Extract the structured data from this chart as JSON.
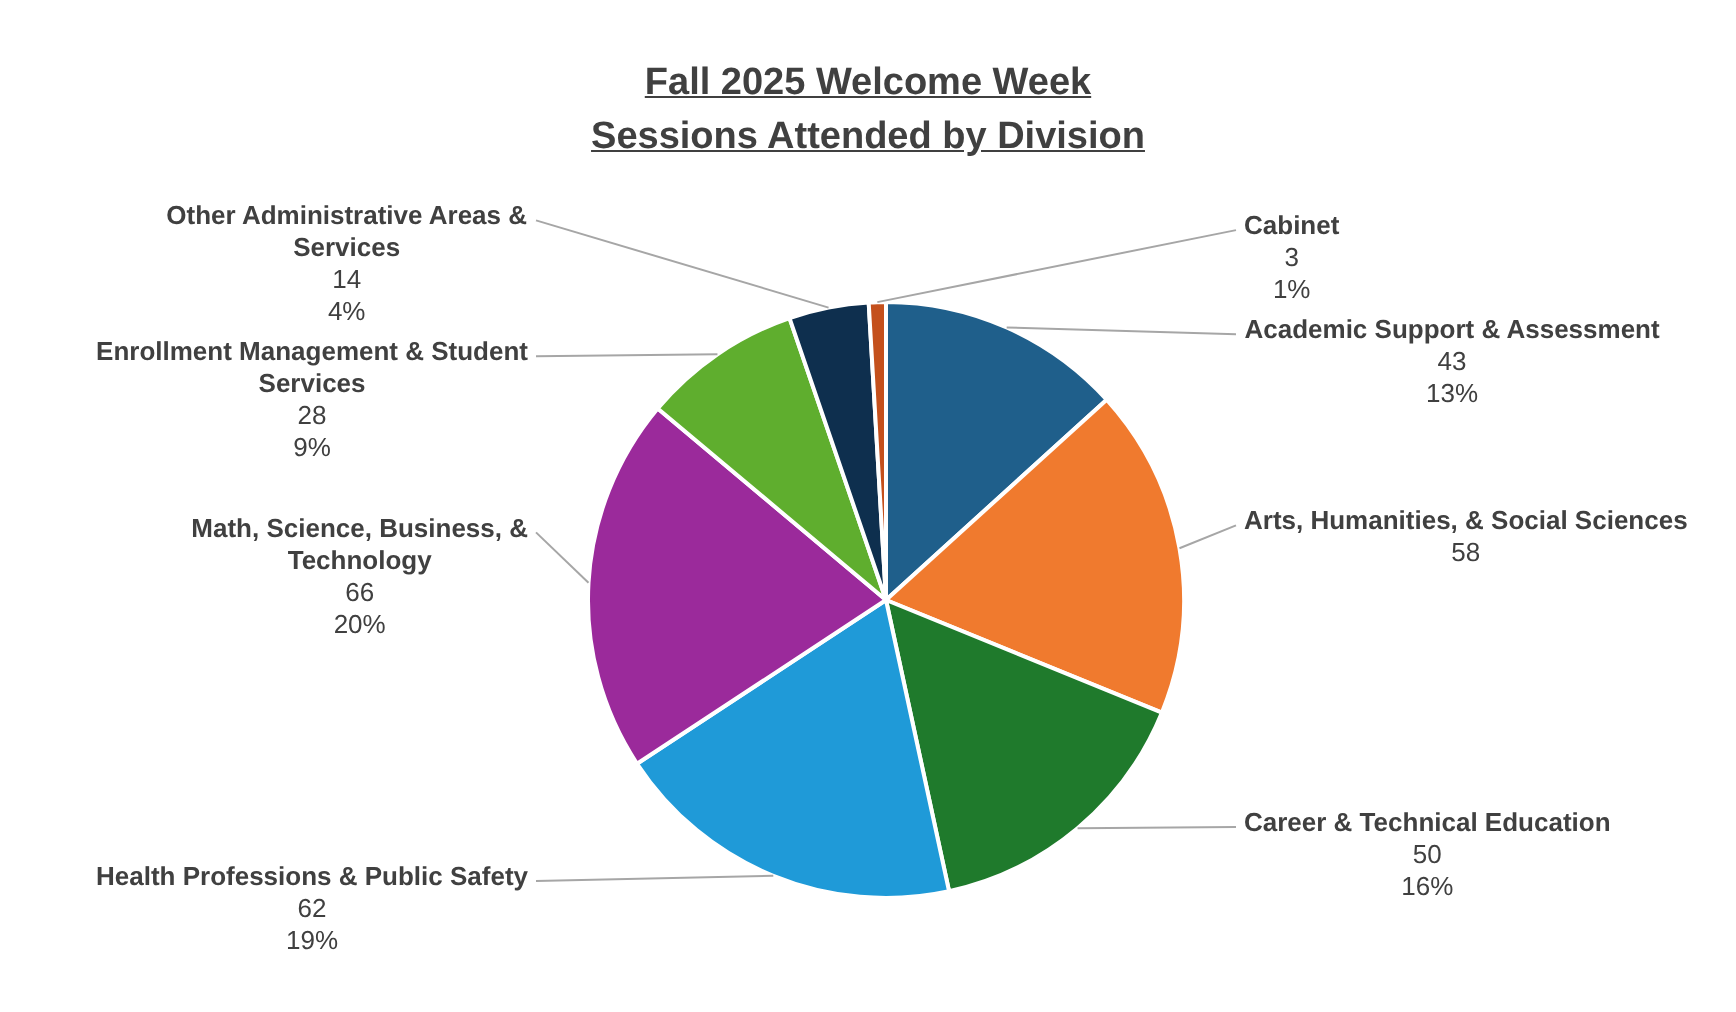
{
  "chart_data": {
    "type": "pie",
    "title": "Fall 2025 Welcome Week\nSessions Attended by Division",
    "categories": [
      "Academic Support & Assessment",
      "Arts, Humanities, & Social Sciences",
      "Career & Technical Education",
      "Health Professions & Public Safety",
      "Math, Science, Business, & Technology",
      "Enrollment Management & Student Services",
      "Other Administrative Areas & Services",
      "Cabinet"
    ],
    "values": [
      43,
      58,
      50,
      62,
      66,
      28,
      14,
      3
    ],
    "colors": [
      "#1f5f8b",
      "#f07a2e",
      "#1f7a2c",
      "#1f9ad8",
      "#9b2a9b",
      "#5fae2e",
      "#0e2f4e",
      "#c4501c"
    ],
    "value_labels": [
      "43\n13%",
      "58",
      "50\n16%",
      "62\n19%",
      "66\n20%",
      "28\n9%",
      "14\n4%",
      "3\n1%"
    ]
  }
}
